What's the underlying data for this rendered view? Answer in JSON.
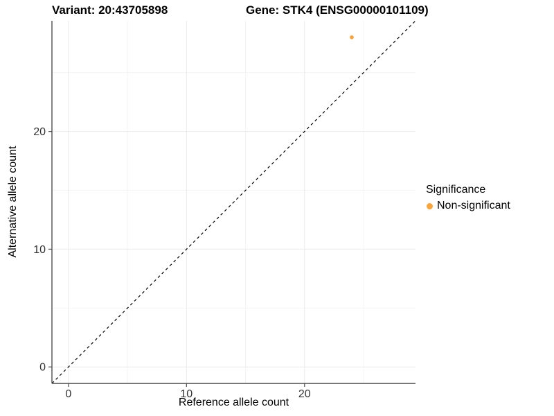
{
  "titles": {
    "variant": "Variant: 20:43705898",
    "gene": "Gene: STK4 (ENSG00000101109)"
  },
  "chart_data": {
    "type": "scatter",
    "title": "Variant: 20:43705898   Gene: STK4 (ENSG00000101109)",
    "xlabel": "Reference allele count",
    "ylabel": "Alternative allele count",
    "xlim": [
      -1.4,
      29.4
    ],
    "ylim": [
      -1.4,
      29.4
    ],
    "xticks": [
      0,
      10,
      20
    ],
    "yticks": [
      0,
      10,
      20
    ],
    "xticks_minor": [
      5,
      15,
      25
    ],
    "yticks_minor": [
      5,
      15,
      25
    ],
    "grid": true,
    "identity_line": {
      "style": "dashed",
      "from": -1.4,
      "to": 29.4,
      "color": "#000000"
    },
    "points": [
      {
        "x": 24,
        "y": 28,
        "series": "Non-significant"
      }
    ],
    "legend": {
      "position": "right",
      "title": "Significance",
      "items": [
        {
          "label": "Non-significant",
          "color": "#FAA43A"
        }
      ]
    },
    "colors": {
      "point": "#FAA43A",
      "axis": "#4D4D4D",
      "grid_major": "#EBEBEB",
      "grid_minor": "#F4F4F4",
      "tick_text": "#333333"
    }
  }
}
